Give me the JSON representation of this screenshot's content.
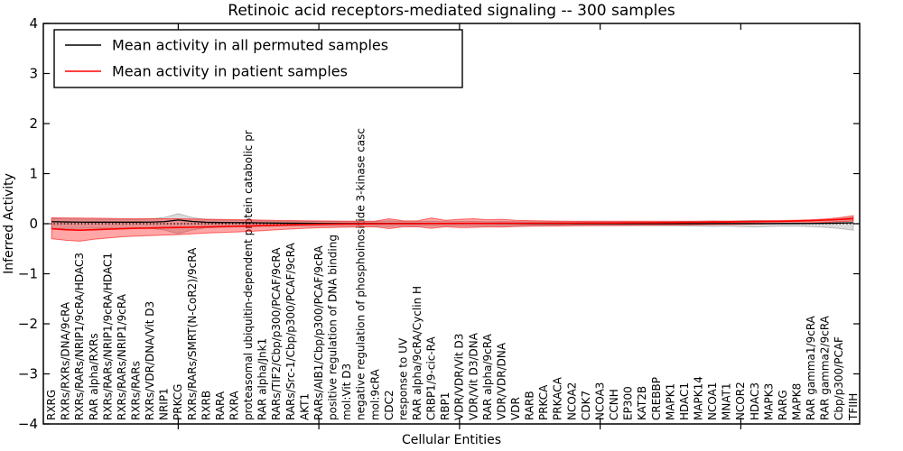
{
  "chart_data": {
    "type": "line",
    "title": "Retinoic acid receptors-mediated signaling -- 300 samples",
    "xlabel": "Cellular Entities",
    "ylabel": "Inferred Activity",
    "ylim": [
      -4,
      4
    ],
    "yticks": [
      4,
      3,
      2,
      1,
      0,
      -1,
      -2,
      -3,
      -4
    ],
    "xtick_indices": [
      9,
      19,
      29,
      39,
      49
    ],
    "grid": false,
    "legend_position": "upper left",
    "frame_color": "#000000",
    "categories": [
      "RXRG",
      "RXRs/RXRs/DNA/9cRA",
      "RXRs/RARs/NRIP1/9cRA/HDAC3",
      "RAR alpha/RXRs",
      "RXRs/RARs/NRIP1/9cRA/HDAC1",
      "RXRs/RARs/NRIP1/9cRA",
      "RXRs/RARs",
      "RXRs/VDR/DNA/Vit D3",
      "NRIP1",
      "PRKCG",
      "RXRs/RARs/SMRT(N-CoR2)/9cRA",
      "RXRB",
      "RARA",
      "RXRA",
      "proteasomal ubiquitin-dependent protein catabolic pr",
      "RAR alpha/Jnk1",
      "RARs/TIF2/Cbp/p300/PCAF/9cRA",
      "RARs/Src-1/Cbp/p300/PCAF/9cRA",
      "AKT1",
      "RARs/AIB1/Cbp/p300/PCAF/9cRA",
      "positive regulation of DNA binding",
      "mol:Vit D3",
      "negative regulation of phosphoinositide 3-kinase casc",
      "mol:9cRA",
      "CDC2",
      "response to UV",
      "RAR alpha/9cRA/Cyclin H",
      "CRBP1/9-cic-RA",
      "RBP1",
      "VDR/VDR/Vit D3",
      "VDR/Vit D3/DNA",
      "RAR alpha/9cRA",
      "VDR/VDR/DNA",
      "VDR",
      "RARB",
      "PRKCA",
      "PRKACA",
      "NCOA2",
      "CDK7",
      "NCOA3",
      "CCNH",
      "EP300",
      "KAT2B",
      "CREBBP",
      "MAPK1",
      "HDAC1",
      "MAPK14",
      "NCOA1",
      "MNAT1",
      "NCOR2",
      "HDAC3",
      "MAPK3",
      "RARG",
      "MAPK8",
      "RAR gamma1/9cRA",
      "RAR gamma2/9cRA",
      "Cbp/p300/PCAF",
      "TFIIH"
    ],
    "series": [
      {
        "name": "Mean activity in all permuted samples",
        "color": "#000000",
        "style": "solid",
        "values": [
          0.04,
          0.035,
          0.032,
          0.03,
          0.03,
          0.03,
          0.03,
          0.032,
          0.04,
          0.075,
          0.045,
          0.028,
          0.024,
          0.022,
          0.02,
          0.016,
          0.012,
          0.01,
          0.008,
          0.006,
          0.005,
          0.004,
          0.004,
          0.003,
          0.004,
          0.003,
          0.003,
          0.003,
          0.002,
          0.002,
          0.002,
          0.002,
          0.002,
          0.002,
          0.001,
          0.001,
          0.001,
          0.001,
          0.001,
          0.001,
          0.001,
          0.001,
          0.001,
          0.001,
          0.001,
          0.001,
          0.001,
          0.002,
          0.002,
          0.002,
          0.002,
          0.002,
          0.003,
          0.003,
          0.005,
          0.008,
          0.012,
          0.018
        ]
      },
      {
        "name": "Mean activity in patient samples",
        "color": "#ff0000",
        "style": "solid",
        "values": [
          -0.1,
          -0.12,
          -0.13,
          -0.12,
          -0.11,
          -0.1,
          -0.092,
          -0.086,
          -0.08,
          -0.075,
          -0.07,
          -0.064,
          -0.058,
          -0.052,
          -0.046,
          -0.038,
          -0.03,
          -0.024,
          -0.018,
          -0.013,
          -0.009,
          -0.006,
          -0.004,
          -0.002,
          0.0,
          0.001,
          0.002,
          0.003,
          0.004,
          0.005,
          0.005,
          0.006,
          0.007,
          0.007,
          0.008,
          0.009,
          0.01,
          0.011,
          0.012,
          0.013,
          0.014,
          0.016,
          0.018,
          0.02,
          0.022,
          0.024,
          0.027,
          0.03,
          0.033,
          0.036,
          0.04,
          0.044,
          0.049,
          0.055,
          0.062,
          0.072,
          0.085,
          0.1
        ]
      }
    ],
    "bands": [
      {
        "name": "permuted samples range",
        "color": "#888888",
        "opacity": 0.3,
        "upper": [
          0.1,
          0.096,
          0.092,
          0.09,
          0.088,
          0.086,
          0.084,
          0.092,
          0.125,
          0.2,
          0.125,
          0.082,
          0.072,
          0.066,
          0.06,
          0.055,
          0.05,
          0.048,
          0.046,
          0.044,
          0.042,
          0.041,
          0.04,
          0.04,
          0.058,
          0.04,
          0.04,
          0.048,
          0.04,
          0.044,
          0.048,
          0.04,
          0.044,
          0.04,
          0.039,
          0.038,
          0.038,
          0.038,
          0.038,
          0.038,
          0.038,
          0.038,
          0.038,
          0.038,
          0.04,
          0.044,
          0.048,
          0.056,
          0.048,
          0.058,
          0.066,
          0.056,
          0.048,
          0.05,
          0.058,
          0.072,
          0.095,
          0.13
        ],
        "lower": [
          -0.1,
          -0.096,
          -0.092,
          -0.09,
          -0.088,
          -0.086,
          -0.084,
          -0.092,
          -0.125,
          -0.2,
          -0.125,
          -0.082,
          -0.072,
          -0.066,
          -0.06,
          -0.055,
          -0.05,
          -0.048,
          -0.046,
          -0.044,
          -0.042,
          -0.041,
          -0.04,
          -0.04,
          -0.058,
          -0.04,
          -0.04,
          -0.048,
          -0.04,
          -0.044,
          -0.048,
          -0.04,
          -0.044,
          -0.04,
          -0.039,
          -0.038,
          -0.038,
          -0.038,
          -0.038,
          -0.038,
          -0.038,
          -0.038,
          -0.038,
          -0.038,
          -0.04,
          -0.044,
          -0.048,
          -0.056,
          -0.048,
          -0.058,
          -0.066,
          -0.056,
          -0.048,
          -0.05,
          -0.058,
          -0.072,
          -0.095,
          -0.13
        ]
      },
      {
        "name": "patient samples range",
        "color": "#ff0000",
        "opacity": 0.35,
        "upper": [
          0.12,
          0.115,
          0.112,
          0.11,
          0.106,
          0.102,
          0.1,
          0.098,
          0.098,
          0.098,
          0.094,
          0.09,
          0.086,
          0.082,
          0.078,
          0.072,
          0.066,
          0.062,
          0.058,
          0.056,
          0.054,
          0.052,
          0.05,
          0.052,
          0.098,
          0.058,
          0.056,
          0.115,
          0.068,
          0.088,
          0.098,
          0.078,
          0.088,
          0.068,
          0.06,
          0.056,
          0.052,
          0.05,
          0.05,
          0.05,
          0.05,
          0.05,
          0.05,
          0.05,
          0.05,
          0.05,
          0.05,
          0.052,
          0.052,
          0.054,
          0.056,
          0.06,
          0.064,
          0.07,
          0.078,
          0.095,
          0.12,
          0.16
        ],
        "lower": [
          -0.3,
          -0.33,
          -0.35,
          -0.31,
          -0.285,
          -0.262,
          -0.248,
          -0.238,
          -0.228,
          -0.218,
          -0.202,
          -0.188,
          -0.176,
          -0.166,
          -0.156,
          -0.14,
          -0.122,
          -0.106,
          -0.092,
          -0.082,
          -0.076,
          -0.07,
          -0.066,
          -0.062,
          -0.1,
          -0.064,
          -0.06,
          -0.092,
          -0.06,
          -0.078,
          -0.074,
          -0.062,
          -0.068,
          -0.056,
          -0.05,
          -0.047,
          -0.044,
          -0.041,
          -0.039,
          -0.037,
          -0.035,
          -0.033,
          -0.031,
          -0.029,
          -0.027,
          -0.025,
          -0.022,
          -0.019,
          -0.016,
          -0.013,
          -0.009,
          -0.005,
          0.0,
          0.006,
          0.014,
          0.025,
          0.038,
          0.052
        ]
      }
    ],
    "zero_line": {
      "style": "dotted",
      "color": "#000000",
      "y": 0
    }
  }
}
